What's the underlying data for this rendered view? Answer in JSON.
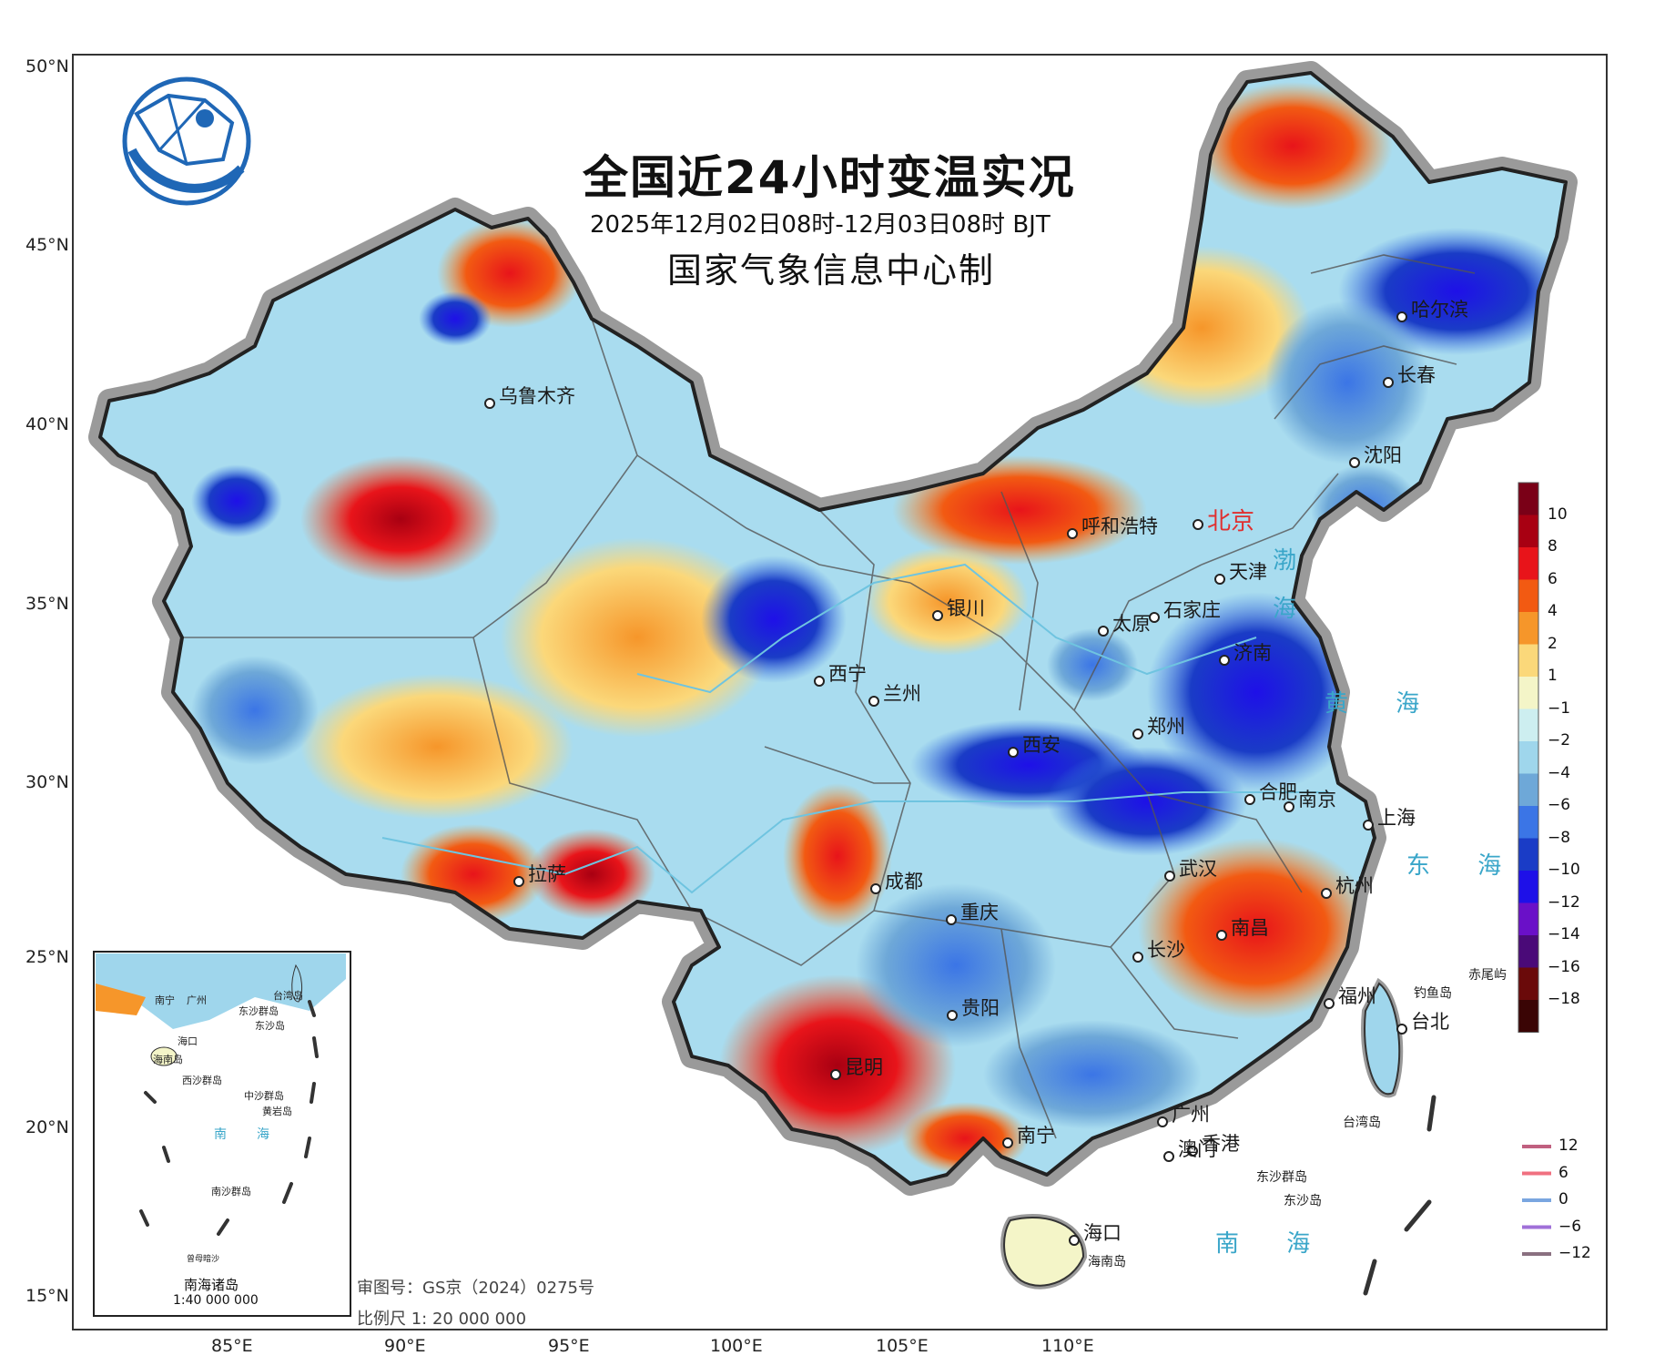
{
  "title": "全国近24小时变温实况",
  "period": "2025年12月02日08时-12月03日08时 BJT",
  "producer": "国家气象信息中心制",
  "axes": {
    "lat_labels": [
      "50°N",
      "45°N",
      "40°N",
      "35°N",
      "30°N",
      "25°N",
      "20°N",
      "15°N"
    ],
    "lon_labels": [
      "85°E",
      "90°E",
      "95°E",
      "100°E",
      "105°E",
      "110°E"
    ]
  },
  "cities": [
    {
      "name": "哈尔滨"
    },
    {
      "name": "长春"
    },
    {
      "name": "沈阳"
    },
    {
      "name": "乌鲁木齐"
    },
    {
      "name": "呼和浩特"
    },
    {
      "name": "北京"
    },
    {
      "name": "天津"
    },
    {
      "name": "石家庄"
    },
    {
      "name": "银川"
    },
    {
      "name": "太原"
    },
    {
      "name": "济南"
    },
    {
      "name": "西宁"
    },
    {
      "name": "兰州"
    },
    {
      "name": "西安"
    },
    {
      "name": "郑州"
    },
    {
      "name": "合肥"
    },
    {
      "name": "南京"
    },
    {
      "name": "上海"
    },
    {
      "name": "拉萨"
    },
    {
      "name": "成都"
    },
    {
      "name": "武汉"
    },
    {
      "name": "杭州"
    },
    {
      "name": "重庆"
    },
    {
      "name": "长沙"
    },
    {
      "name": "南昌"
    },
    {
      "name": "贵阳"
    },
    {
      "name": "福州"
    },
    {
      "name": "台北"
    },
    {
      "name": "昆明"
    },
    {
      "name": "广州"
    },
    {
      "name": "南宁"
    },
    {
      "name": "香港"
    },
    {
      "name": "澳门"
    },
    {
      "name": "海口"
    }
  ],
  "islands": [
    "海南岛",
    "东沙群岛",
    "东沙岛",
    "钓鱼岛",
    "赤尾屿",
    "台湾岛"
  ],
  "seas": [
    {
      "name": "渤"
    },
    {
      "name": "海"
    },
    {
      "name": "黄 海"
    },
    {
      "name": "东 海"
    },
    {
      "name": "南 海"
    }
  ],
  "inset": {
    "title": "南海诸岛",
    "scale": "1:40 000 000",
    "labels": [
      "南宁",
      "广州",
      "台湾岛",
      "海口",
      "东沙群岛",
      "海南岛",
      "东沙岛",
      "西沙群岛",
      "中沙群岛",
      "黄岩岛",
      "南",
      "海",
      "南沙群岛",
      "曾母暗沙"
    ]
  },
  "approval": "审图号：GS京（2024）0275号",
  "map_scale": "比例尺 1: 20 000 000",
  "legend_fill": {
    "values": [
      "10",
      "8",
      "6",
      "4",
      "2",
      "1",
      "−1",
      "−2",
      "−4",
      "−6",
      "−8",
      "−10",
      "−12",
      "−14",
      "−16",
      "−18"
    ],
    "colors": [
      "#7a0017",
      "#a80012",
      "#e8141a",
      "#f25a12",
      "#f6962a",
      "#fbd87a",
      "#f4f5c8",
      "#cdeef0",
      "#9fd6ec",
      "#6ea8d8",
      "#3b75e6",
      "#1a3cc6",
      "#1e10e8",
      "#6a10c8",
      "#4a0a78",
      "#6a0a0a",
      "#3a0505"
    ]
  },
  "legend_lines": [
    {
      "label": "12",
      "color": "#c06080"
    },
    {
      "label": "6",
      "color": "#f07080"
    },
    {
      "label": "0",
      "color": "#7aa6e0"
    },
    {
      "label": "−6",
      "color": "#a070d8"
    },
    {
      "label": "−12",
      "color": "#8a7080"
    }
  ]
}
